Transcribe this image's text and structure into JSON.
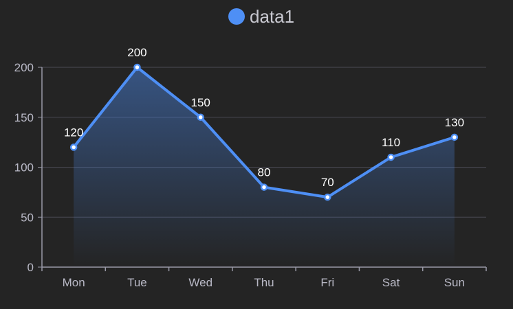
{
  "chart_data": {
    "type": "area",
    "categories": [
      "Mon",
      "Tue",
      "Wed",
      "Thu",
      "Fri",
      "Sat",
      "Sun"
    ],
    "series": [
      {
        "name": "data1",
        "values": [
          120,
          200,
          150,
          80,
          70,
          110,
          130
        ]
      }
    ],
    "ylim": [
      0,
      200
    ],
    "yticks": [
      0,
      50,
      100,
      150,
      200
    ],
    "legend_position": "top-center",
    "grid": true,
    "show_data_labels": true
  },
  "colors": {
    "background": "#242424",
    "line": "#4e8ff5",
    "grid": "#4a4a55",
    "axis": "#9a9aa8",
    "tick_text": "#b9b9c6",
    "label_text": "#ffffff"
  }
}
